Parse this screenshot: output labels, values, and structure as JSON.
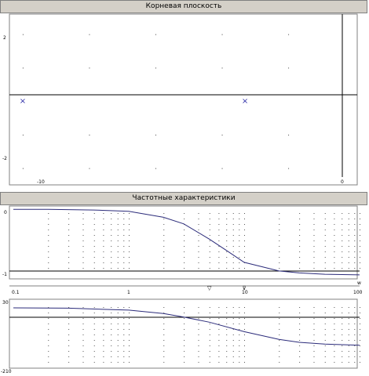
{
  "root_locus": {
    "title": "Корневая плоскость",
    "x_ticks": [
      "-10",
      "0"
    ],
    "y_ticks": [
      "2",
      "-2"
    ],
    "poles": [
      -10,
      -3.3
    ],
    "pole_marker": "×",
    "marker_color": "#3333aa"
  },
  "frequency": {
    "title": "Частотные характеристики",
    "mag_ticks": [
      "0",
      "-1"
    ],
    "freq_ticks": [
      "0.1",
      "1",
      "10",
      "100"
    ],
    "freq_axis_unit": "w",
    "phase_ticks": [
      "30",
      "-210"
    ],
    "markers": [
      {
        "symbol": "▽",
        "freq": 5
      },
      {
        "symbol": "⊽",
        "freq": 10
      }
    ],
    "curve_color": "#2b2b7a"
  },
  "chart_data": [
    {
      "type": "scatter",
      "title": "Корневая плоскость",
      "xlabel": "",
      "ylabel": "",
      "xlim": [
        -10.4,
        0.08
      ],
      "ylim": [
        -2.5,
        2.6
      ],
      "series": [
        {
          "name": "",
          "x": [
            -10,
            -3.3
          ],
          "y": [
            0,
            0
          ]
        }
      ],
      "grid": true
    },
    {
      "type": "line",
      "title": "Частотные характеристики",
      "xscale": "log",
      "xlim": [
        0.1,
        100
      ],
      "ylim": [
        -1.05,
        0.05
      ],
      "series": [
        {
          "name": "",
          "x": [
            0.1,
            0.2,
            0.5,
            1,
            2,
            3,
            5,
            7,
            10,
            20,
            30,
            50,
            100
          ],
          "y": [
            0,
            0,
            -0.01,
            -0.03,
            -0.12,
            -0.22,
            -0.45,
            -0.62,
            -0.8,
            -0.93,
            -0.96,
            -0.98,
            -0.99
          ]
        }
      ],
      "grid": true
    },
    {
      "type": "line",
      "title": "",
      "xscale": "log",
      "xlim": [
        0.1,
        100
      ],
      "ylim": [
        -210,
        30
      ],
      "series": [
        {
          "name": "",
          "x": [
            0.1,
            0.3,
            1,
            2,
            3,
            5,
            10,
            20,
            30,
            50,
            100
          ],
          "y": [
            0,
            -1,
            -8,
            -20,
            -32,
            -50,
            -83,
            -110,
            -120,
            -126,
            -130
          ]
        }
      ],
      "grid": true
    }
  ]
}
